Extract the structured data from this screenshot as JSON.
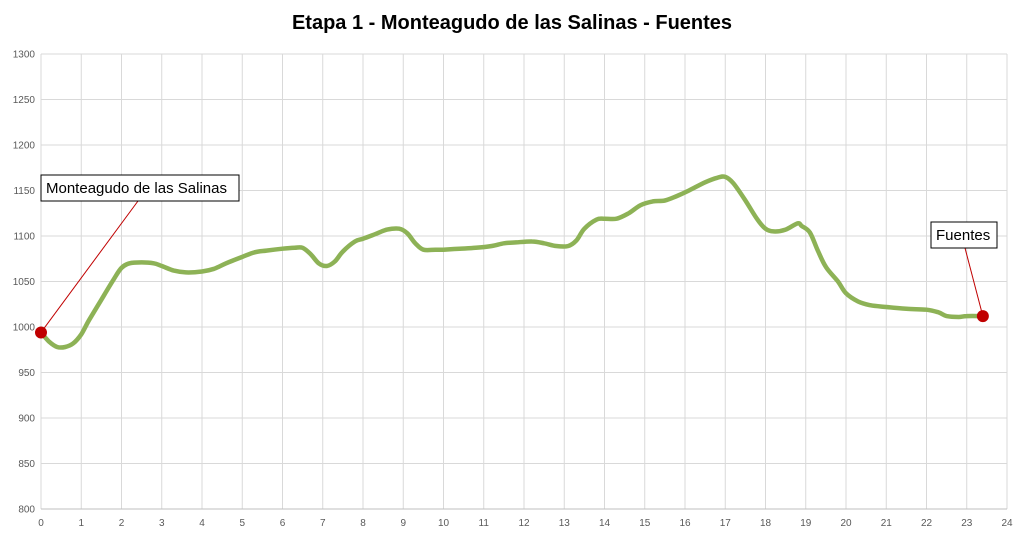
{
  "chart_data": {
    "type": "line",
    "title": "Etapa 1 - Monteagudo de las Salinas - Fuentes",
    "xlabel": "",
    "ylabel": "",
    "xlim": [
      0,
      24
    ],
    "ylim": [
      800,
      1300
    ],
    "x_ticks": [
      0,
      1,
      2,
      3,
      4,
      5,
      6,
      7,
      8,
      9,
      10,
      11,
      12,
      13,
      14,
      15,
      16,
      17,
      18,
      19,
      20,
      21,
      22,
      23,
      24
    ],
    "y_ticks": [
      800,
      850,
      900,
      950,
      1000,
      1050,
      1100,
      1150,
      1200,
      1250,
      1300
    ],
    "grid": true,
    "line_color": "#8db256",
    "marker_color": "#c00000",
    "series": [
      {
        "x": [
          0,
          0.2,
          0.4,
          0.6,
          0.8,
          1,
          1.2,
          1.5,
          1.8,
          2,
          2.2,
          2.5,
          2.8,
          3,
          3.3,
          3.6,
          4,
          4.3,
          4.6,
          5,
          5.3,
          5.6,
          6,
          6.3,
          6.5,
          6.7,
          6.9,
          7.1,
          7.3,
          7.5,
          7.8,
          8,
          8.3,
          8.6,
          8.9,
          9.1,
          9.3,
          9.5,
          9.8,
          10,
          10.4,
          10.8,
          11.2,
          11.5,
          11.8,
          12.2,
          12.5,
          12.8,
          13.1,
          13.3,
          13.5,
          13.8,
          14,
          14.3,
          14.6,
          14.9,
          15.2,
          15.5,
          15.8,
          16.1,
          16.5,
          16.8,
          17,
          17.2,
          17.5,
          17.8,
          18,
          18.2,
          18.5,
          18.8,
          18.9,
          19.1,
          19.3,
          19.5,
          19.8,
          20,
          20.3,
          20.6,
          21,
          21.5,
          22,
          22.3,
          22.5,
          22.8,
          23,
          23.4
        ],
        "y": [
          994,
          984,
          978,
          978,
          982,
          992,
          1008,
          1030,
          1052,
          1065,
          1070,
          1071,
          1070,
          1067,
          1062,
          1060,
          1061,
          1064,
          1070,
          1077,
          1082,
          1084,
          1086,
          1087,
          1087,
          1080,
          1070,
          1067,
          1072,
          1083,
          1094,
          1097,
          1102,
          1107,
          1108,
          1103,
          1092,
          1085,
          1085,
          1085,
          1086,
          1087,
          1089,
          1092,
          1093,
          1094,
          1092,
          1089,
          1089,
          1095,
          1108,
          1118,
          1119,
          1119,
          1125,
          1134,
          1138,
          1139,
          1144,
          1150,
          1159,
          1164,
          1165,
          1158,
          1139,
          1118,
          1108,
          1105,
          1107,
          1114,
          1111,
          1104,
          1084,
          1066,
          1050,
          1037,
          1028,
          1024,
          1022,
          1020,
          1019,
          1016,
          1012,
          1011,
          1012,
          1012
        ]
      }
    ],
    "annotations": [
      {
        "text": "Monteagudo de las Salinas",
        "x": 0,
        "y": 994
      },
      {
        "text": "Fuentes",
        "x": 23.4,
        "y": 1012
      }
    ]
  }
}
